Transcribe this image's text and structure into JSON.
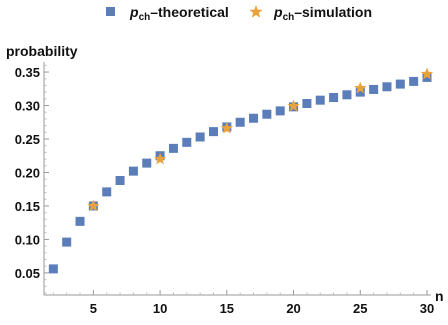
{
  "chart_data": {
    "type": "scatter",
    "title": "",
    "xlabel": "n",
    "ylabel": "probability",
    "xlim": [
      1.3,
      30.3
    ],
    "ylim": [
      0.017,
      0.365
    ],
    "x_ticks": [
      5,
      10,
      15,
      20,
      25,
      30
    ],
    "y_ticks": [
      0.05,
      0.1,
      0.15,
      0.2,
      0.25,
      0.3,
      0.35
    ],
    "x_tick_labels": [
      "5",
      "10",
      "15",
      "20",
      "25",
      "30"
    ],
    "y_tick_labels": [
      "0.05",
      "0.10",
      "0.15",
      "0.20",
      "0.25",
      "0.30",
      "0.35"
    ],
    "grid": false,
    "legend": "top",
    "series": [
      {
        "name_main": "p",
        "name_sub": "ch",
        "name_suffix": "–theoretical",
        "marker": "square",
        "color": "#5B7DB9",
        "x": [
          2,
          3,
          4,
          5,
          6,
          7,
          8,
          9,
          10,
          11,
          12,
          13,
          14,
          15,
          16,
          17,
          18,
          19,
          20,
          21,
          22,
          23,
          24,
          25,
          26,
          27,
          28,
          29,
          30
        ],
        "y": [
          0.056,
          0.096,
          0.127,
          0.15,
          0.171,
          0.188,
          0.202,
          0.214,
          0.225,
          0.236,
          0.245,
          0.253,
          0.261,
          0.268,
          0.275,
          0.281,
          0.287,
          0.292,
          0.298,
          0.303,
          0.308,
          0.312,
          0.316,
          0.32,
          0.324,
          0.328,
          0.332,
          0.336,
          0.342
        ]
      },
      {
        "name_main": "p",
        "name_sub": "ch",
        "name_suffix": "–simulation",
        "marker": "star",
        "color": "#E8A33D",
        "x": [
          5,
          10,
          15,
          20,
          25,
          30
        ],
        "y": [
          0.15,
          0.22,
          0.266,
          0.299,
          0.326,
          0.347
        ]
      }
    ]
  }
}
